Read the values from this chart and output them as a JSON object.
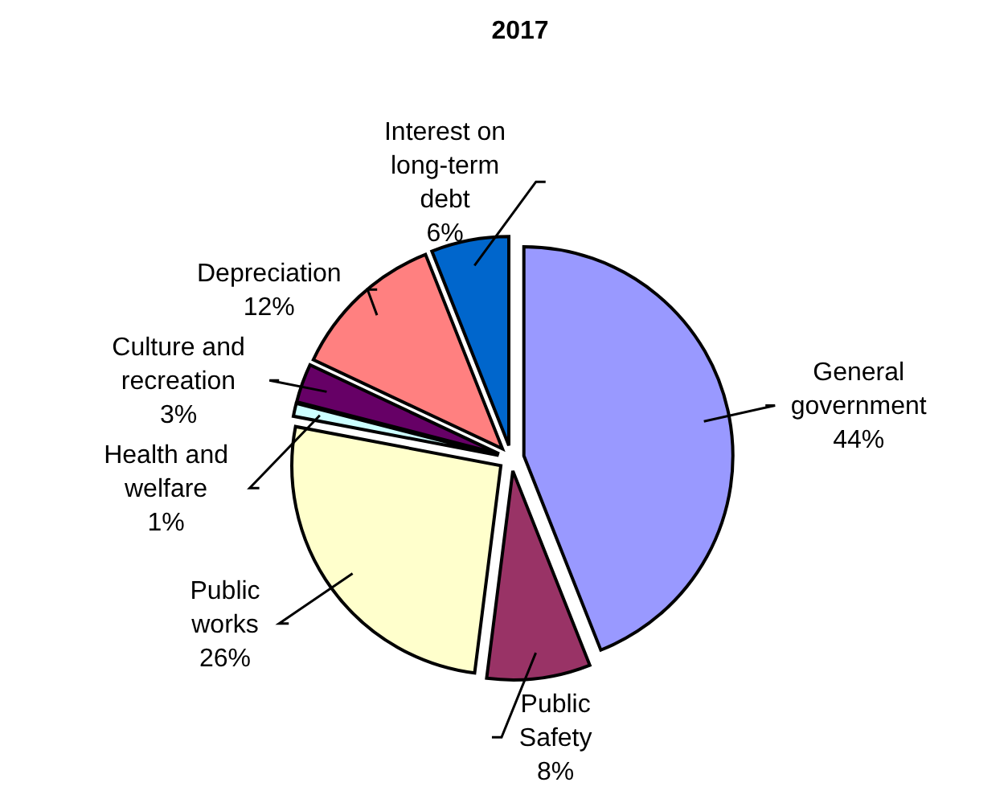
{
  "chart_data": {
    "type": "pie",
    "title": "2017",
    "categories": [
      "General government",
      "Public Safety",
      "Public works",
      "Health and welfare",
      "Culture and recreation",
      "Depreciation",
      "Interest on long-term debt"
    ],
    "values": [
      44,
      8,
      26,
      1,
      3,
      12,
      6
    ],
    "value_labels": [
      "44%",
      "8%",
      "26%",
      "1%",
      "3%",
      "12%",
      "6%"
    ],
    "colors": [
      "#9999ff",
      "#993366",
      "#ffffcc",
      "#ccffff",
      "#660066",
      "#ff8080",
      "#0066cc"
    ]
  }
}
